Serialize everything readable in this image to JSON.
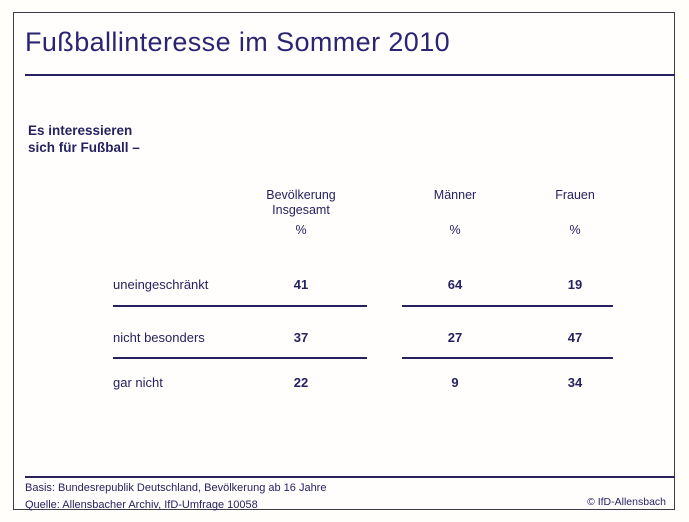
{
  "page": {
    "title": "Fußballinteresse im Sommer 2010",
    "intro_line1": "Es interessieren",
    "intro_line2": "sich für Fußball –"
  },
  "table": {
    "col1_line1": "Bevölkerung",
    "col1_line2": "Insgesamt",
    "col2": "Männer",
    "col3": "Frauen",
    "percent": "%",
    "rows": [
      {
        "label": "uneingeschränkt",
        "v1": "41",
        "v2": "64",
        "v3": "19"
      },
      {
        "label": "nicht besonders",
        "v1": "37",
        "v2": "27",
        "v3": "47"
      },
      {
        "label": "gar nicht",
        "v1": "22",
        "v2": "9",
        "v3": "34"
      }
    ]
  },
  "footer": {
    "basis": "Basis: Bundesrepublik Deutschland, Bevölkerung ab 16 Jahre",
    "quelle": "Quelle: Allensbacher Archiv, IfD-Umfrage 10058",
    "copyright": "© IfD-Allensbach"
  },
  "colors": {
    "text_navy": "#262262",
    "frame_gray": "#3c3c46",
    "background": "#fffefb"
  },
  "chart_data": {
    "type": "table",
    "title": "Fußballinteresse im Sommer 2010",
    "subtitle": "Es interessieren sich für Fußball –",
    "unit": "%",
    "categories": [
      "uneingeschränkt",
      "nicht besonders",
      "gar nicht"
    ],
    "series": [
      {
        "name": "Bevölkerung Insgesamt",
        "values": [
          41,
          37,
          22
        ]
      },
      {
        "name": "Männer",
        "values": [
          64,
          27,
          9
        ]
      },
      {
        "name": "Frauen",
        "values": [
          19,
          47,
          34
        ]
      }
    ],
    "footnotes": [
      "Basis: Bundesrepublik Deutschland, Bevölkerung ab 16 Jahre",
      "Quelle: Allensbacher Archiv, IfD-Umfrage 10058",
      "© IfD-Allensbach"
    ]
  }
}
